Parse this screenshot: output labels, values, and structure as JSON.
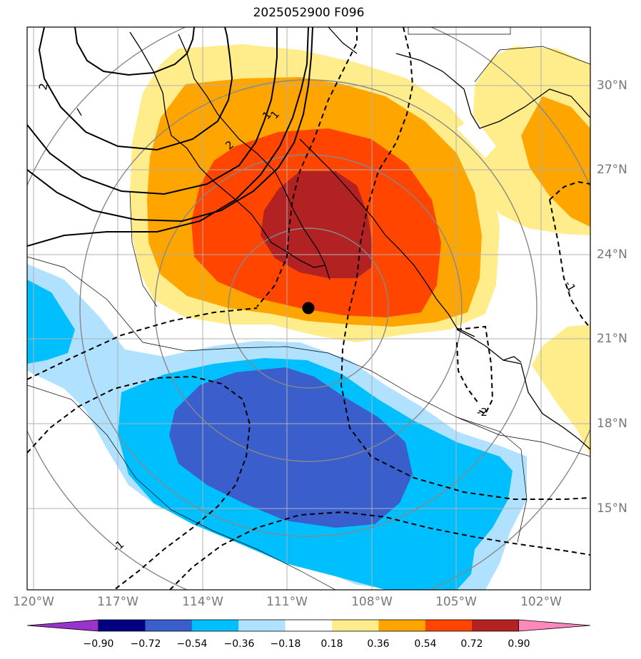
{
  "title": "2025052900 F096",
  "lon_labels": [
    "120°W",
    "117°W",
    "114°W",
    "111°W",
    "108°W",
    "105°W",
    "102°W"
  ],
  "lat_labels": [
    "30°N",
    "27°N",
    "24°N",
    "21°N",
    "18°N",
    "15°N"
  ],
  "contour_labels": [
    "2",
    "1",
    "2",
    "-1",
    "-2",
    "-1",
    "1"
  ],
  "colorbar": {
    "labels": [
      "−0.90",
      "−0.72",
      "−0.54",
      "−0.36",
      "−0.18",
      "0.18",
      "0.36",
      "0.54",
      "0.72",
      "0.90"
    ],
    "colors": [
      "#9933cc",
      "#000080",
      "#3a5fcd",
      "#00bfff",
      "#b0e2ff",
      "#ffffff",
      "#ffec8b",
      "#ffa500",
      "#ff4500",
      "#b22222",
      "#ff88bb"
    ]
  },
  "marker": {
    "lon": -110.3,
    "lat": 22.1
  }
}
